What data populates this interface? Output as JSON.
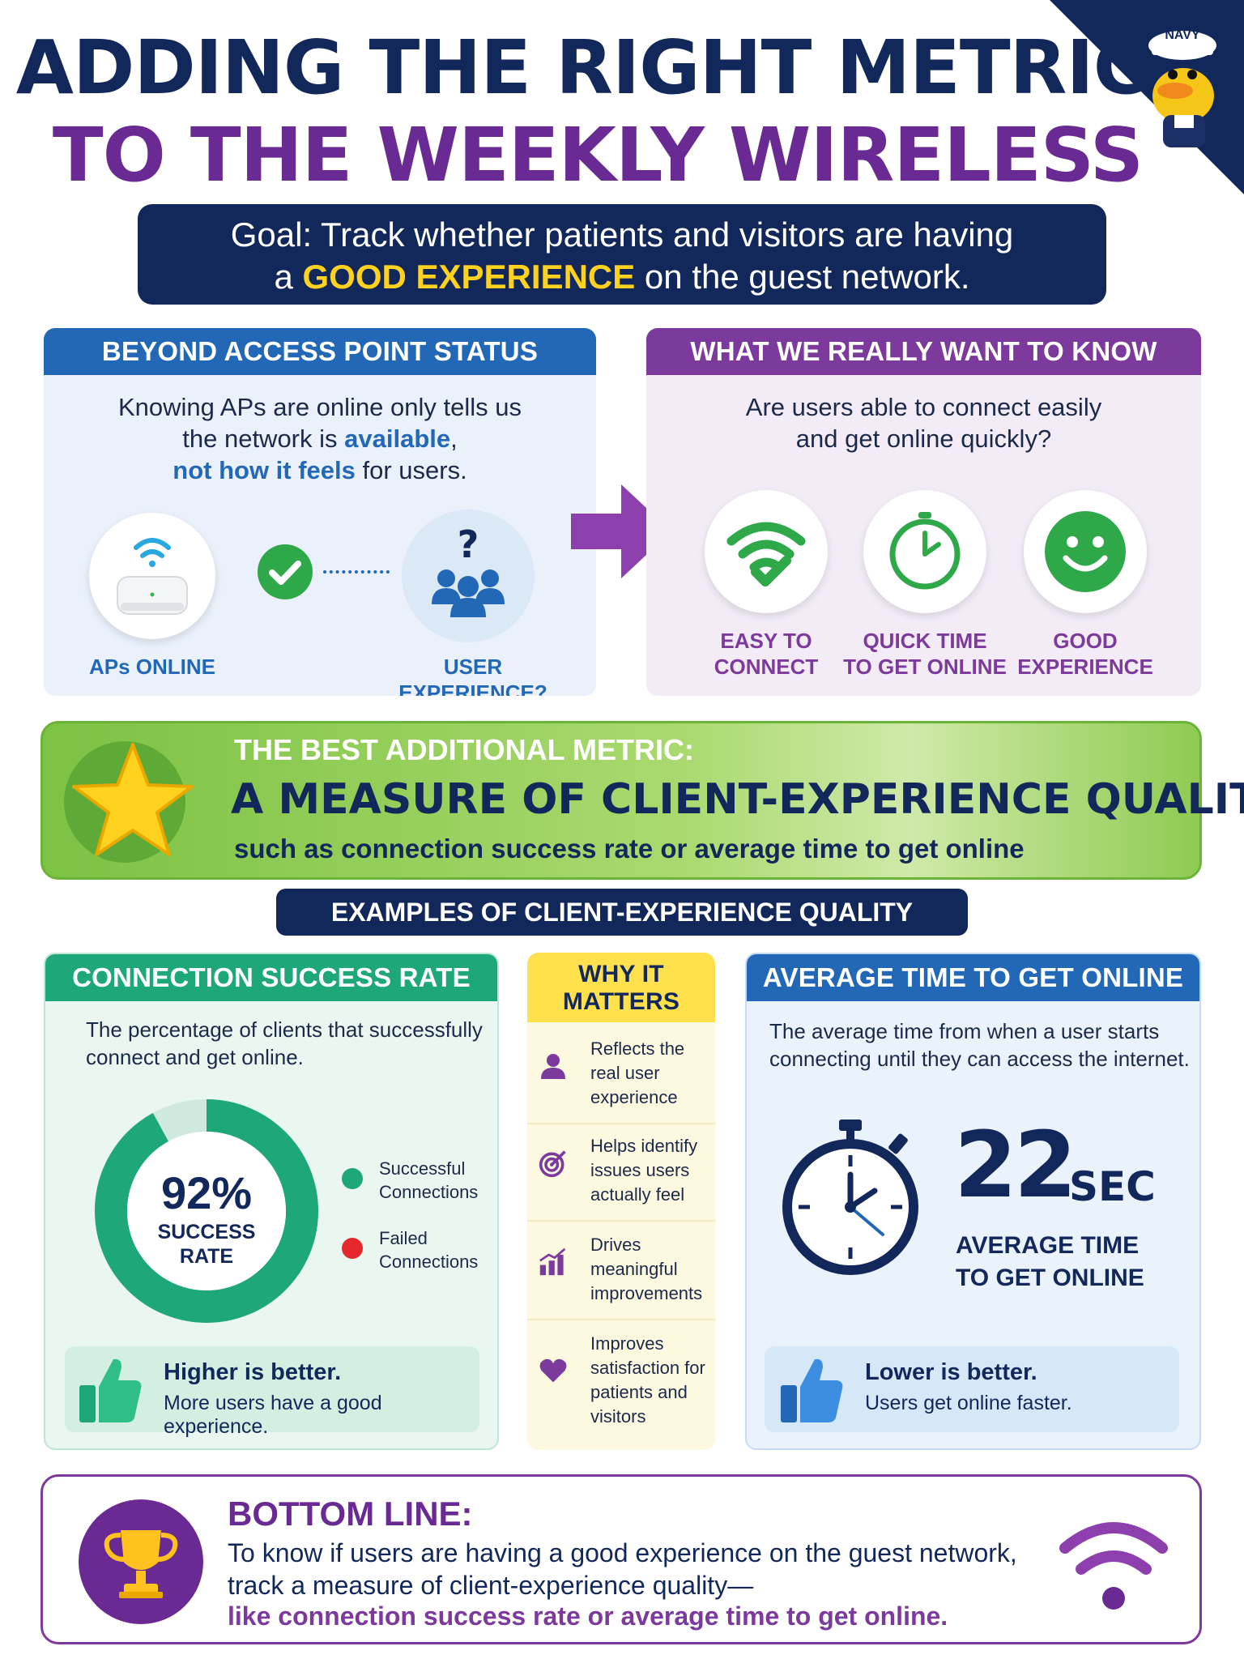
{
  "corner": {
    "cap_text": "NAVY"
  },
  "title": {
    "line1": "ADDING THE RIGHT METRIC",
    "line2": "TO THE WEEKLY WIRELESS REPORT"
  },
  "goal": {
    "line1": "Goal: Track whether patients and visitors are having",
    "line2_pre": "a ",
    "line2_hl": "GOOD EXPERIENCE",
    "line2_post": " on the guest network."
  },
  "beyond": {
    "header": "BEYOND ACCESS POINT STATUS",
    "text1": "Knowing APs are online only tells us",
    "text2_pre": "the network is ",
    "text2_hl": "available",
    "text2_post": ",",
    "text3_hl": "not how it feels",
    "text3_post": " for users.",
    "label_aps": "APs ONLINE",
    "label_ux": "USER EXPERIENCE?",
    "question_mark": "?"
  },
  "want": {
    "header": "WHAT WE REALLY WANT TO KNOW",
    "text1": "Are users able to connect easily",
    "text2": "and get online quickly?",
    "items": [
      {
        "line1": "EASY TO",
        "line2": "CONNECT"
      },
      {
        "line1": "QUICK TIME",
        "line2": "TO GET ONLINE"
      },
      {
        "line1": "GOOD",
        "line2": "EXPERIENCE"
      }
    ]
  },
  "best": {
    "kicker": "THE BEST ADDITIONAL METRIC:",
    "headline": "A MEASURE OF CLIENT-EXPERIENCE QUALITY",
    "sub": "such as connection success rate or average time to get online"
  },
  "examples_title": "EXAMPLES OF CLIENT-EXPERIENCE QUALITY METRICS",
  "success": {
    "header": "CONNECTION SUCCESS RATE",
    "desc1": "The percentage of clients that successfully",
    "desc2": "connect and get online.",
    "percent_label": "92%",
    "percent_value": 92,
    "center_line1": "SUCCESS",
    "center_line2": "RATE",
    "legend": [
      {
        "line1": "Successful",
        "line2": "Connections",
        "color": "#1ea779"
      },
      {
        "line1": "Failed",
        "line2": "Connections",
        "color": "#e5282e"
      }
    ],
    "note_head": "Higher is better.",
    "note_sub": "More users have a good experience."
  },
  "why": {
    "header_line1": "WHY IT",
    "header_line2": "MATTERS",
    "items": [
      {
        "icon": "person-icon",
        "lines": [
          "Reflects the",
          "real user",
          "experience"
        ]
      },
      {
        "icon": "target-icon",
        "lines": [
          "Helps identify",
          "issues users",
          "actually feel"
        ]
      },
      {
        "icon": "bar-chart-icon",
        "lines": [
          "Drives",
          "meaningful",
          "improvements"
        ]
      },
      {
        "icon": "heart-icon",
        "lines": [
          "Improves",
          "satisfaction for",
          "patients and",
          "visitors"
        ]
      }
    ]
  },
  "avg": {
    "header": "AVERAGE TIME TO GET ONLINE",
    "desc1": "The average time from when a user starts",
    "desc2": "connecting until they can access the internet.",
    "value": "22",
    "unit": "SEC",
    "label1": "AVERAGE TIME",
    "label2": "TO GET ONLINE",
    "note_head": "Lower is better.",
    "note_sub": "Users get online faster."
  },
  "bottom": {
    "heading": "BOTTOM LINE:",
    "line1": "To know if users are having a good experience on the guest network,",
    "line2": "track a measure of client-experience quality—",
    "line3": "like connection success rate or average time to get online."
  },
  "colors": {
    "navy": "#13285a",
    "purple": "#6a2a93",
    "blue": "#2368b7",
    "green": "#1ea779",
    "yellow": "#ffe14d",
    "red": "#e5282e"
  }
}
